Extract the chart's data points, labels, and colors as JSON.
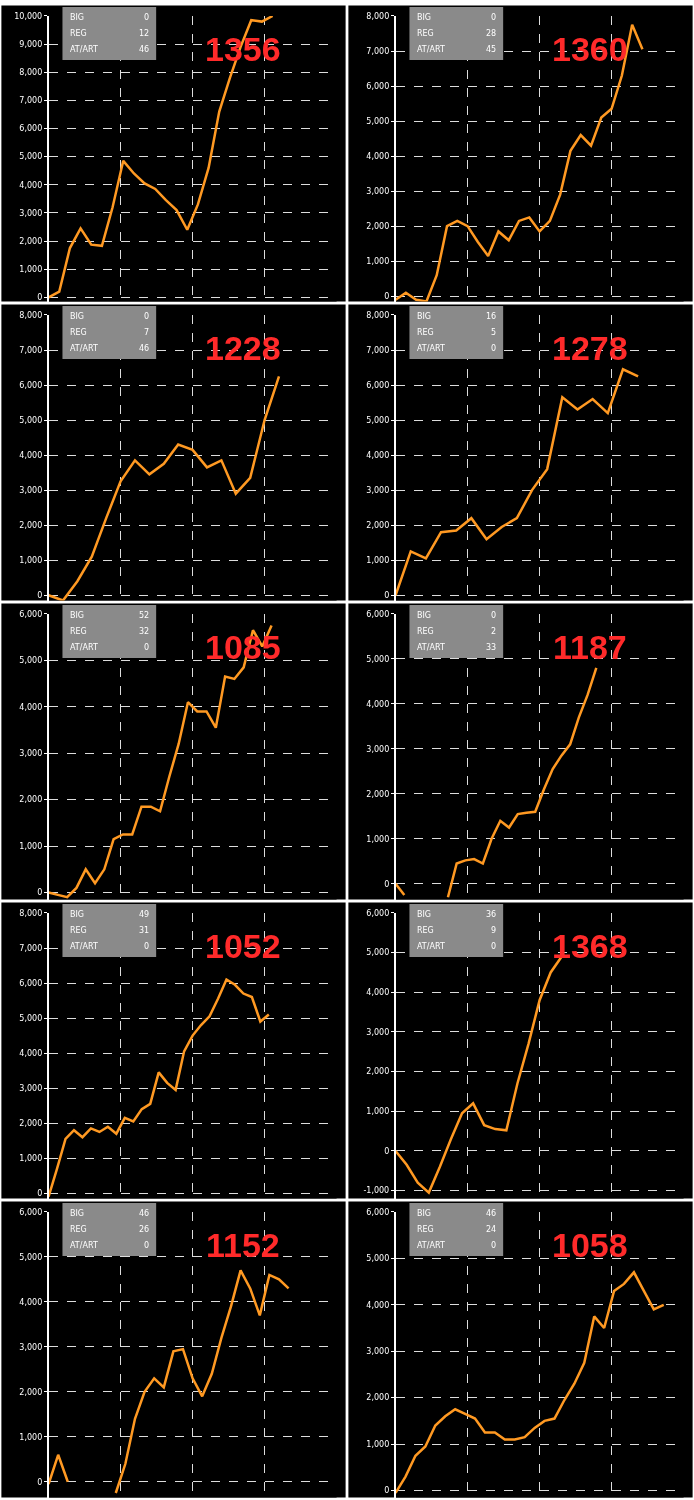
{
  "chart_data": [
    {
      "type": "line",
      "title": "1356",
      "annotations": [
        "BIG 0",
        "REG 12",
        "AT/ART 46"
      ],
      "categories": [
        null,
        null,
        null,
        null,
        null,
        null,
        null,
        null,
        null,
        null,
        null,
        null,
        null,
        null,
        null,
        null,
        null,
        null,
        null,
        null,
        null,
        null,
        null,
        null,
        null,
        null,
        null,
        null
      ],
      "ylim": [
        -150,
        10000
      ],
      "yticks": [
        0,
        {
          "value": 1000,
          "label": "1,000"
        },
        {
          "value": 2000,
          "label": "2,000"
        },
        {
          "value": 3000,
          "label": "3,000"
        },
        {
          "value": 4000,
          "label": "4,000"
        },
        {
          "value": 5000,
          "label": "5,000"
        },
        {
          "value": 6000,
          "label": "6,000"
        },
        {
          "value": 7000,
          "label": "7,000"
        },
        {
          "value": 8000,
          "label": "8,000"
        },
        {
          "value": 9000,
          "label": "9,000"
        },
        {
          "value": 10000,
          "label": "10,000"
        }
      ],
      "grid": true,
      "tick_labels": "y",
      "line_style": "solid",
      "series": [
        {
          "color": "#ff9922",
          "values": [
            0,
            200,
            1750,
            2450,
            1870,
            1830,
            3200,
            4850,
            4400,
            4050,
            3850,
            3450,
            3100,
            2400,
            3300,
            4600,
            6600,
            7800,
            8900,
            9850,
            9800,
            10000,
            null,
            null,
            null,
            null,
            null,
            null
          ]
        }
      ]
    },
    {
      "type": "line",
      "title": "1360",
      "annotations": [
        "BIG 0",
        "REG 28",
        "AT/ART 45"
      ],
      "categories": [
        null,
        null,
        null,
        null,
        null,
        null,
        null,
        null,
        null,
        null,
        null,
        null,
        null,
        null,
        null,
        null,
        null,
        null,
        null,
        null,
        null,
        null,
        null,
        null,
        null,
        null,
        null,
        null,
        null
      ],
      "ylim": [
        -150,
        8000
      ],
      "yticks": [
        0,
        {
          "value": 1000,
          "label": "1,000"
        },
        {
          "value": 2000,
          "label": "2,000"
        },
        {
          "value": 3000,
          "label": "3,000"
        },
        {
          "value": 4000,
          "label": "4,000"
        },
        {
          "value": 5000,
          "label": "5,000"
        },
        {
          "value": 6000,
          "label": "6,000"
        },
        {
          "value": 7000,
          "label": "7,000"
        },
        {
          "value": 8000,
          "label": "8,000"
        }
      ],
      "grid": true,
      "tick_labels": "y",
      "line_style": "solid",
      "series": [
        {
          "color": "#ff9922",
          "values": [
            -100,
            100,
            -100,
            -150,
            600,
            2000,
            2150,
            2000,
            1550,
            1150,
            1850,
            1600,
            2150,
            2250,
            1850,
            2150,
            2900,
            4150,
            4600,
            4300,
            5100,
            5350,
            6300,
            7750,
            7050,
            null,
            null,
            null,
            null
          ]
        }
      ]
    },
    {
      "type": "line",
      "title": "1228",
      "annotations": [
        "BIG 0",
        "REG 7",
        "AT/ART 46"
      ],
      "categories": [
        null,
        null,
        null,
        null,
        null,
        null,
        null,
        null,
        null,
        null,
        null,
        null,
        null,
        null,
        null,
        null,
        null,
        null,
        null,
        null,
        null
      ],
      "ylim": [
        -150,
        8000
      ],
      "yticks": [
        0,
        {
          "value": 1000,
          "label": "1,000"
        },
        {
          "value": 2000,
          "label": "2,000"
        },
        {
          "value": 3000,
          "label": "3,000"
        },
        {
          "value": 4000,
          "label": "4,000"
        },
        {
          "value": 5000,
          "label": "5,000"
        },
        {
          "value": 6000,
          "label": "6,000"
        },
        {
          "value": 7000,
          "label": "7,000"
        },
        {
          "value": 8000,
          "label": "8,000"
        }
      ],
      "grid": true,
      "tick_labels": "y",
      "line_style": "solid",
      "series": [
        {
          "color": "#ff9922",
          "values": [
            0,
            -150,
            400,
            1100,
            2200,
            3250,
            3850,
            3450,
            3750,
            4300,
            4150,
            3650,
            3850,
            2900,
            3350,
            5000,
            6250,
            null,
            null,
            null,
            null
          ]
        }
      ]
    },
    {
      "type": "line",
      "title": "1278",
      "annotations": [
        "BIG 16",
        "REG 5",
        "AT/ART 0"
      ],
      "categories": [
        null,
        null,
        null,
        null,
        null,
        null,
        null,
        null,
        null,
        null,
        null,
        null,
        null,
        null,
        null,
        null,
        null,
        null,
        null,
        null
      ],
      "ylim": [
        -150,
        8000
      ],
      "yticks": [
        0,
        {
          "value": 1000,
          "label": "1,000"
        },
        {
          "value": 2000,
          "label": "2,000"
        },
        {
          "value": 3000,
          "label": "3,000"
        },
        {
          "value": 4000,
          "label": "4,000"
        },
        {
          "value": 5000,
          "label": "5,000"
        },
        {
          "value": 6000,
          "label": "6,000"
        },
        {
          "value": 7000,
          "label": "7,000"
        },
        {
          "value": 8000,
          "label": "8,000"
        }
      ],
      "grid": true,
      "tick_labels": "y",
      "line_style": "solid",
      "series": [
        {
          "color": "#ff9922",
          "values": [
            0,
            1250,
            1050,
            1800,
            1850,
            2200,
            1600,
            1950,
            2200,
            3000,
            3600,
            5650,
            5300,
            5600,
            5200,
            6450,
            6250,
            null,
            null,
            null
          ]
        }
      ]
    },
    {
      "type": "line",
      "title": "1085",
      "annotations": [
        "BIG 52",
        "REG 32",
        "AT/ART 0"
      ],
      "categories": [
        null,
        null,
        null,
        null,
        null,
        null,
        null,
        null,
        null,
        null,
        null,
        null,
        null,
        null,
        null,
        null,
        null,
        null,
        null,
        null,
        null,
        null,
        null,
        null,
        null,
        null,
        null,
        null,
        null,
        null,
        null,
        null
      ],
      "ylim": [
        -150,
        6000
      ],
      "yticks": [
        0,
        {
          "value": 1000,
          "label": "1,000"
        },
        {
          "value": 2000,
          "label": "2,000"
        },
        {
          "value": 3000,
          "label": "3,000"
        },
        {
          "value": 4000,
          "label": "4,000"
        },
        {
          "value": 5000,
          "label": "5,000"
        },
        {
          "value": 6000,
          "label": "6,000"
        }
      ],
      "grid": true,
      "tick_labels": "y",
      "line_style": "solid",
      "series": [
        {
          "color": "#ff9922",
          "values": [
            0,
            -50,
            -100,
            100,
            500,
            200,
            500,
            1150,
            1250,
            1250,
            1850,
            1850,
            1750,
            2500,
            3200,
            4100,
            3900,
            3900,
            3550,
            4650,
            4600,
            4850,
            5650,
            5300,
            5750,
            null,
            null,
            null,
            null,
            null,
            null,
            null
          ]
        }
      ]
    },
    {
      "type": "line",
      "title": "1187",
      "annotations": [
        "BIG 0",
        "REG 2",
        "AT/ART 33"
      ],
      "categories": [
        null,
        null,
        null,
        null,
        null,
        null,
        null,
        null,
        null,
        null,
        null,
        null,
        null,
        null,
        null,
        null,
        null,
        null,
        null,
        null,
        null,
        null,
        null,
        null,
        null,
        null,
        null,
        null,
        null,
        null,
        null,
        null,
        null,
        null
      ],
      "ylim": [
        -350,
        6000
      ],
      "yticks": [
        0,
        {
          "value": 1000,
          "label": "1,000"
        },
        {
          "value": 2000,
          "label": "2,000"
        },
        {
          "value": 3000,
          "label": "3,000"
        },
        {
          "value": 4000,
          "label": "4,000"
        },
        {
          "value": 5000,
          "label": "5,000"
        },
        {
          "value": 6000,
          "label": "6,000"
        }
      ],
      "grid": true,
      "tick_labels": "y",
      "line_style": "solid",
      "series": [
        {
          "color": "#ff9922",
          "values": [
            0,
            -250,
            null,
            null,
            null,
            null,
            null,
            null,
            null,
            null,
            null,
            null,
            null,
            null,
            null,
            null,
            null,
            null,
            null,
            null,
            null,
            null,
            null,
            null,
            null,
            null,
            null,
            null,
            null,
            null,
            null,
            null,
            null,
            null
          ]
        },
        {
          "color": "#ff9922",
          "values": [
            null,
            null,
            null,
            null,
            null,
            null,
            -300,
            450,
            520,
            550,
            450,
            1000,
            1400,
            1250,
            1550,
            1580,
            1600,
            2100,
            2550,
            2850,
            3100,
            3700,
            4200,
            4800,
            null,
            null,
            null,
            null,
            null,
            null,
            null,
            null,
            null,
            null
          ]
        }
      ]
    },
    {
      "type": "line",
      "title": "1052",
      "annotations": [
        "BIG 49",
        "REG 31",
        "AT/ART 0"
      ],
      "categories": [
        null,
        null,
        null,
        null,
        null,
        null,
        null,
        null,
        null,
        null,
        null,
        null,
        null,
        null,
        null,
        null,
        null,
        null,
        null,
        null,
        null,
        null,
        null,
        null,
        null,
        null,
        null,
        null,
        null,
        null,
        null,
        null,
        null,
        null,
        null
      ],
      "ylim": [
        -150,
        8000
      ],
      "yticks": [
        0,
        {
          "value": 1000,
          "label": "1,000"
        },
        {
          "value": 2000,
          "label": "2,000"
        },
        {
          "value": 3000,
          "label": "3,000"
        },
        {
          "value": 4000,
          "label": "4,000"
        },
        {
          "value": 5000,
          "label": "5,000"
        },
        {
          "value": 6000,
          "label": "6,000"
        },
        {
          "value": 7000,
          "label": "7,000"
        },
        {
          "value": 8000,
          "label": "8,000"
        }
      ],
      "grid": true,
      "tick_labels": "y",
      "line_style": "solid",
      "series": [
        {
          "color": "#ff9922",
          "values": [
            -100,
            700,
            1550,
            1800,
            1600,
            1850,
            1750,
            1900,
            1700,
            2150,
            2050,
            2400,
            2550,
            3450,
            3150,
            2950,
            4050,
            4500,
            4800,
            5050,
            5550,
            6100,
            5950,
            5700,
            5600,
            4900,
            5100,
            null,
            null,
            null,
            null,
            null,
            null,
            null,
            null
          ]
        }
      ]
    },
    {
      "type": "line",
      "title": "1368",
      "annotations": [
        "BIG 36",
        "REG 9",
        "AT/ART 0"
      ],
      "categories": [
        null,
        null,
        null,
        null,
        null,
        null,
        null,
        null,
        null,
        null,
        null,
        null,
        null,
        null,
        null,
        null,
        null,
        null,
        null,
        null,
        null,
        null,
        null,
        null,
        null,
        null,
        null
      ],
      "ylim": [
        -1200,
        6000
      ],
      "yticks": [
        {
          "value": -1000,
          "label": "-1,000"
        },
        0,
        {
          "value": 1000,
          "label": "1,000"
        },
        {
          "value": 2000,
          "label": "2,000"
        },
        {
          "value": 3000,
          "label": "3,000"
        },
        {
          "value": 4000,
          "label": "4,000"
        },
        {
          "value": 5000,
          "label": "5,000"
        },
        {
          "value": 6000,
          "label": "6,000"
        }
      ],
      "grid": true,
      "tick_labels": "y",
      "line_style": "solid",
      "series": [
        {
          "color": "#ff9922",
          "values": [
            0,
            -350,
            -800,
            -1050,
            -400,
            300,
            950,
            1200,
            650,
            550,
            520,
            1700,
            2700,
            3800,
            4500,
            4900,
            null,
            null,
            null,
            null,
            null,
            null,
            null,
            null,
            null,
            null,
            null
          ]
        }
      ]
    },
    {
      "type": "line",
      "title": "1152",
      "annotations": [
        "BIG 46",
        "REG 26",
        "AT/ART 0"
      ],
      "categories": [
        null,
        null,
        null,
        null,
        null,
        null,
        null,
        null,
        null,
        null,
        null,
        null,
        null,
        null,
        null,
        null,
        null,
        null,
        null,
        null,
        null,
        null,
        null,
        null,
        null,
        null,
        null,
        null,
        null,
        null,
        null
      ],
      "ylim": [
        -350,
        6000
      ],
      "yticks": [
        0,
        {
          "value": 1000,
          "label": "1,000"
        },
        {
          "value": 2000,
          "label": "2,000"
        },
        {
          "value": 3000,
          "label": "3,000"
        },
        {
          "value": 4000,
          "label": "4,000"
        },
        {
          "value": 5000,
          "label": "5,000"
        },
        {
          "value": 6000,
          "label": "6,000"
        }
      ],
      "grid": true,
      "tick_labels": "y",
      "line_style": "solid",
      "series": [
        {
          "color": "#ff9922",
          "values": [
            -50,
            600,
            0,
            null,
            null,
            null,
            null,
            null,
            null,
            null,
            null,
            null,
            null,
            null,
            null,
            null,
            null,
            null,
            null,
            null,
            null,
            null,
            null,
            null,
            null,
            null,
            null,
            null,
            null,
            null,
            null
          ]
        },
        {
          "color": "#ff9922",
          "values": [
            null,
            null,
            null,
            null,
            null,
            null,
            null,
            -250,
            400,
            1400,
            2000,
            2300,
            2100,
            2900,
            2950,
            2300,
            1900,
            2400,
            3200,
            3900,
            4700,
            4300,
            3700,
            4600,
            4500,
            4300,
            null,
            null,
            null,
            null,
            null
          ]
        }
      ]
    },
    {
      "type": "line",
      "title": "1058",
      "annotations": [
        "BIG 46",
        "REG 24",
        "AT/ART 0"
      ],
      "categories": [
        null,
        null,
        null,
        null,
        null,
        null,
        null,
        null,
        null,
        null,
        null,
        null,
        null,
        null,
        null,
        null,
        null,
        null,
        null,
        null,
        null,
        null,
        null,
        null,
        null,
        null,
        null,
        null,
        null,
        null
      ],
      "ylim": [
        -150,
        6000
      ],
      "yticks": [
        0,
        {
          "value": 1000,
          "label": "1,000"
        },
        {
          "value": 2000,
          "label": "2,000"
        },
        {
          "value": 3000,
          "label": "3,000"
        },
        {
          "value": 4000,
          "label": "4,000"
        },
        {
          "value": 5000,
          "label": "5,000"
        },
        {
          "value": 6000,
          "label": "6,000"
        }
      ],
      "grid": true,
      "tick_labels": "y",
      "line_style": "solid",
      "series": [
        {
          "color": "#ff9922",
          "values": [
            -50,
            300,
            750,
            950,
            1400,
            1600,
            1750,
            1650,
            1550,
            1250,
            1250,
            1100,
            1100,
            1150,
            1350,
            1500,
            1550,
            1950,
            2300,
            2750,
            3750,
            3500,
            4300,
            4450,
            4700,
            4300,
            3900,
            4000,
            null,
            null
          ]
        }
      ]
    }
  ]
}
